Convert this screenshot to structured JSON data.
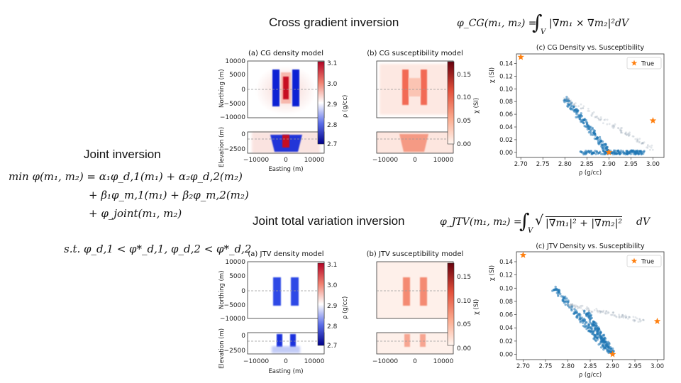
{
  "headings": {
    "cg": "Cross gradient inversion",
    "jtv": "Joint total variation inversion",
    "joint": "Joint inversion"
  },
  "formulas": {
    "cg_lhs": "φ_CG(m₁, m₂) =",
    "cg_integrand": "|∇m₁ × ∇m₂|²dV",
    "jtv_lhs": "φ_JTV(m₁, m₂) =",
    "jtv_integrand": "|∇m₁|² + |∇m₂|²",
    "jtv_dv": "dV",
    "int_sub": "V",
    "objective_line1": "min φ(m₁, m₂) = α₁φ_d,1(m₁) + α₂φ_d,2(m₂)",
    "objective_line2": "+ β₁φ_m,1(m₁) + β₂φ_m,2(m₂)",
    "objective_line3": "+ φ_joint(m₁, m₂)",
    "constraint": "s.t.  φ_d,1 < φ*_d,1, φ_d,2 < φ*_d,2"
  },
  "colors": {
    "density_high": "#b40426",
    "density_mid": "#ffffff",
    "density_low": "#00008b",
    "sus_high": "#67000d",
    "sus_low": "#fff5f0",
    "scatter": "#1f77b4",
    "true_marker": "#ff7f0e"
  },
  "panels": {
    "cg_density_title": "(a) CG density model",
    "cg_sus_title": "(b) CG susceptibility model",
    "cg_scatter_title": "(c) CG Density vs. Susceptibility",
    "jtv_density_title": "(a) JTV density model",
    "jtv_sus_title": "(b) JTV susceptibility model",
    "jtv_scatter_title": "(c) JTV Density vs. Susceptibility",
    "northing_label": "Northing (m)",
    "elevation_label": "Elevation (m)",
    "easting_label": "Easting (m)",
    "rho_label": "ρ (g/cc)",
    "chi_label": "χ (SI)",
    "legend_true": "True",
    "north_ticks": [
      "10000",
      "5000",
      "0",
      "−5000",
      "−10000"
    ],
    "elev_ticks": [
      "0",
      "−2500"
    ],
    "east_ticks": [
      "−10000",
      "0",
      "10000"
    ],
    "cg_rho_ticks": [
      "3.1",
      "3.0",
      "2.9",
      "2.8",
      "2.7"
    ],
    "cg_chi_ticks": [
      "0.15",
      "0.10",
      "0.05",
      "0.00"
    ],
    "jtv_rho_ticks": [
      "3.1",
      "3.0",
      "2.9",
      "2.8",
      "2.7"
    ],
    "jtv_chi_ticks": [
      "0.15",
      "0.10",
      "0.05",
      "0.00"
    ]
  },
  "chart_data": [
    {
      "type": "scatter",
      "title": "(c) CG Density vs. Susceptibility",
      "xlabel": "ρ (g/cc)",
      "ylabel": "χ (SI)",
      "xlim": [
        2.69,
        3.025
      ],
      "ylim": [
        -0.008,
        0.155
      ],
      "xticks": [
        2.7,
        2.75,
        2.8,
        2.85,
        2.9,
        2.95,
        3.0
      ],
      "yticks": [
        0.0,
        0.02,
        0.04,
        0.06,
        0.08,
        0.1,
        0.12,
        0.14
      ],
      "legend": "top-right",
      "true_points": [
        [
          2.7,
          0.15
        ],
        [
          2.9,
          0.0
        ],
        [
          3.0,
          0.05
        ]
      ],
      "cloud_segments": [
        {
          "from": [
            2.8,
            0.085
          ],
          "to": [
            2.9,
            0.0
          ],
          "weight": "dense"
        },
        {
          "from": [
            2.8,
            0.085
          ],
          "to": [
            3.0,
            0.006
          ],
          "weight": "light"
        },
        {
          "from": [
            2.84,
            0.0
          ],
          "to": [
            2.98,
            0.0
          ],
          "weight": "dense"
        }
      ]
    },
    {
      "type": "scatter",
      "title": "(c) JTV Density vs. Susceptibility",
      "xlabel": "ρ (g/cc)",
      "ylabel": "χ (SI)",
      "xlim": [
        2.685,
        3.015
      ],
      "ylim": [
        -0.008,
        0.155
      ],
      "xticks": [
        2.7,
        2.75,
        2.8,
        2.85,
        2.9,
        2.95,
        3.0
      ],
      "yticks": [
        0.0,
        0.02,
        0.04,
        0.06,
        0.08,
        0.1,
        0.12,
        0.14
      ],
      "legend": "top-right",
      "true_points": [
        [
          2.7,
          0.15
        ],
        [
          2.9,
          0.0
        ],
        [
          3.0,
          0.05
        ]
      ],
      "cloud_segments": [
        {
          "from": [
            2.77,
            0.1
          ],
          "to": [
            2.89,
            0.005
          ],
          "weight": "dense"
        },
        {
          "from": [
            2.8,
            0.075
          ],
          "to": [
            2.97,
            0.05
          ],
          "weight": "light"
        },
        {
          "from": [
            2.84,
            0.065
          ],
          "to": [
            2.9,
            0.0
          ],
          "weight": "dense"
        }
      ]
    }
  ]
}
